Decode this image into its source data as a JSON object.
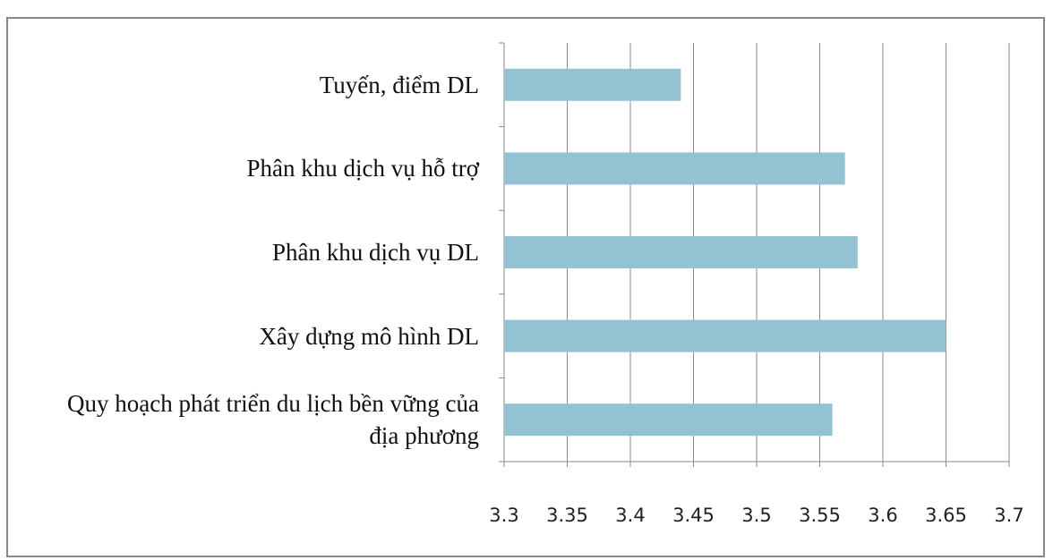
{
  "chart_data": {
    "type": "bar",
    "orientation": "horizontal",
    "categories": [
      "Tuyến, điểm DL",
      "Phân khu dịch vụ hỗ trợ",
      "Phân khu dịch vụ DL",
      "Xây dựng mô hình DL",
      "Quy hoạch phát triển du lịch bền vững của địa phương"
    ],
    "values": [
      3.44,
      3.57,
      3.58,
      3.65,
      3.56
    ],
    "color": "#93c3d3",
    "xlim": [
      3.3,
      3.7
    ],
    "xticks": [
      3.3,
      3.35,
      3.4,
      3.45,
      3.5,
      3.55,
      3.6,
      3.65,
      3.7
    ],
    "grid": true
  }
}
